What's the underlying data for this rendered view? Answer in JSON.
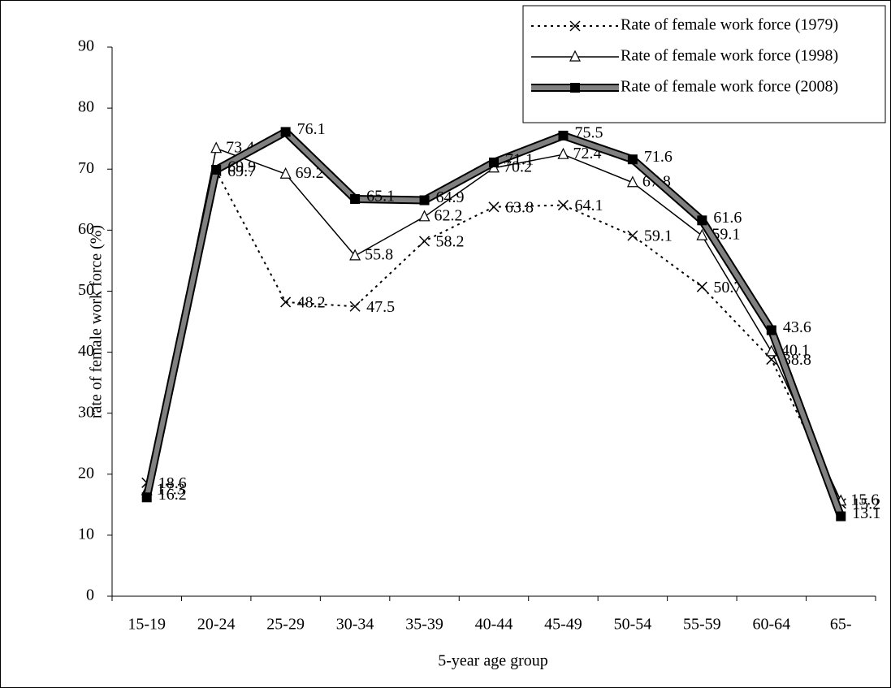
{
  "chart_data": {
    "type": "line",
    "x_label": "5-year age group",
    "y_label": "rate of female work force (%)",
    "categories": [
      "15-19",
      "20-24",
      "25-29",
      "30-34",
      "35-39",
      "40-44",
      "45-49",
      "50-54",
      "55-59",
      "60-64",
      "65-"
    ],
    "series": [
      {
        "name": "Rate of female work force (1979)",
        "color": "#000000",
        "marker": "x",
        "linestyle": "dotted",
        "values": [
          18.6,
          69.7,
          48.2,
          47.5,
          58.2,
          63.8,
          64.1,
          59.1,
          50.7,
          38.8,
          15.2
        ]
      },
      {
        "name": "Rate of female work force (1998)",
        "color": "#000000",
        "marker": "triangle",
        "linestyle": "solid",
        "values": [
          17.3,
          73.4,
          69.2,
          55.8,
          62.2,
          70.2,
          72.4,
          67.8,
          59.1,
          40.1,
          15.6
        ]
      },
      {
        "name": "Rate of female work force (2008)",
        "color": "#808080",
        "marker": "square",
        "linestyle": "thick",
        "values": [
          16.2,
          69.9,
          76.1,
          65.1,
          64.9,
          71.1,
          75.5,
          71.6,
          61.6,
          43.6,
          13.1
        ]
      }
    ],
    "ylim": [
      0,
      90
    ],
    "yticks": [
      0,
      10,
      20,
      30,
      40,
      50,
      60,
      70,
      80,
      90
    ],
    "grid": false,
    "legend": "upper right",
    "data_labels": true
  }
}
